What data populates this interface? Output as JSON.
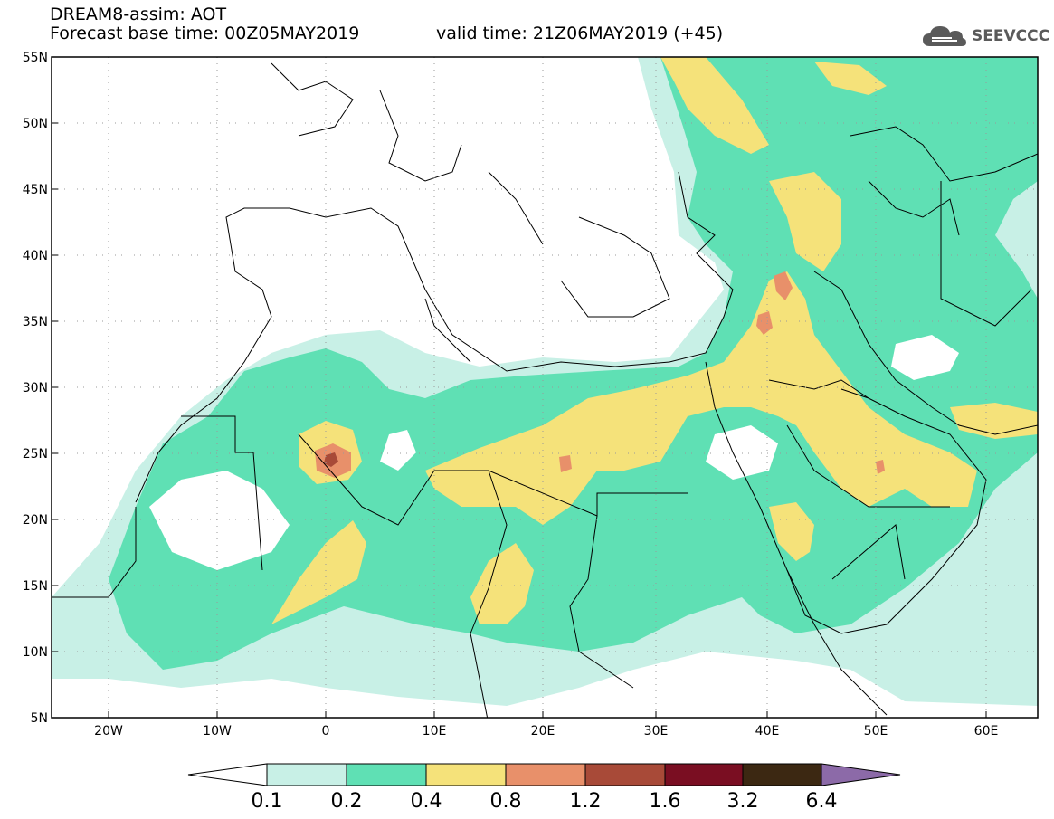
{
  "header": {
    "title": "DREAM8-assim: AOT",
    "base_time": "Forecast base time: 00Z05MAY2019",
    "valid_time": "valid time: 21Z06MAY2019 (+45)",
    "logo_text": "SEEVCCC",
    "logo_icon": "cloud-icon"
  },
  "map": {
    "lat_labels": [
      "55N",
      "50N",
      "45N",
      "40N",
      "35N",
      "30N",
      "25N",
      "20N",
      "15N",
      "10N",
      "5N"
    ],
    "lon_labels": [
      "20W",
      "10W",
      "0",
      "10E",
      "20E",
      "30E",
      "40E",
      "50E",
      "60E"
    ],
    "lat_range": [
      5,
      55
    ],
    "lon_range": [
      -25,
      65
    ],
    "graticule": "dotted",
    "field": "AOT"
  },
  "colorbar": {
    "labels": [
      "0.1",
      "0.2",
      "0.4",
      "0.8",
      "1.2",
      "1.6",
      "3.2",
      "6.4"
    ],
    "colors": [
      "#c8f0e6",
      "#5fe0b4",
      "#f5e27a",
      "#e8906a",
      "#a84a38",
      "#7a0e22",
      "#3c2812",
      "#8c6aa8"
    ],
    "under_color": "#ffffff"
  },
  "colors": {
    "aot_01": "#c8f0e6",
    "aot_02": "#5fe0b4",
    "aot_04": "#f5e27a",
    "aot_08": "#e8906a",
    "aot_12": "#a84a38",
    "logo": "#5a5a5a"
  }
}
